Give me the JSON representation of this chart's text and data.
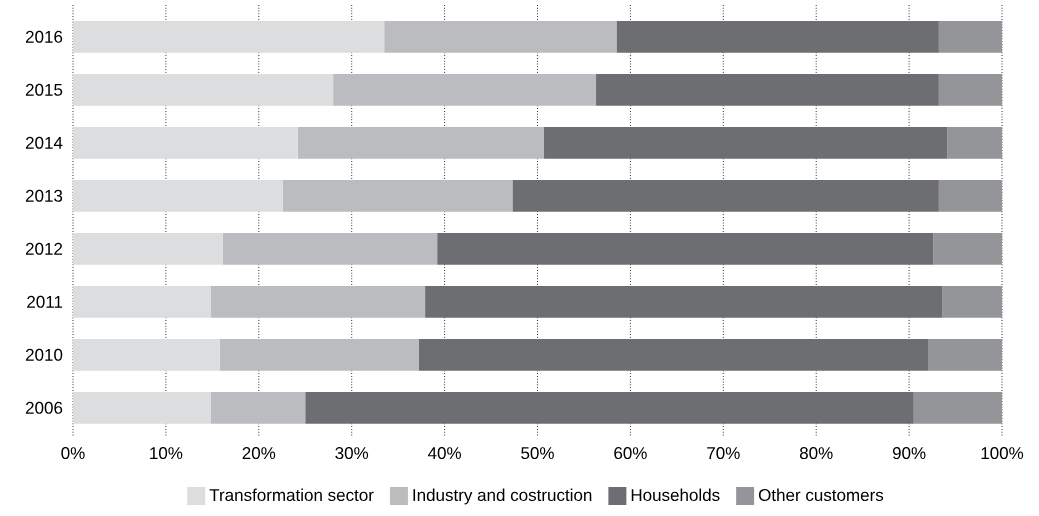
{
  "chart_data": {
    "type": "bar",
    "orientation": "horizontal",
    "stacked": true,
    "grid": "x",
    "legend": "bottom",
    "categories": [
      "2016",
      "2015",
      "2014",
      "2013",
      "2012",
      "2011",
      "2010",
      "2006"
    ],
    "xlim": [
      0,
      100
    ],
    "xticks": [
      {
        "value": 0,
        "label": "0%"
      },
      {
        "value": 10,
        "label": "10%"
      },
      {
        "value": 20,
        "label": "20%"
      },
      {
        "value": 30,
        "label": "30%"
      },
      {
        "value": 40,
        "label": "40%"
      },
      {
        "value": 50,
        "label": "50%"
      },
      {
        "value": 60,
        "label": "60%"
      },
      {
        "value": 70,
        "label": "70%"
      },
      {
        "value": 80,
        "label": "80%"
      },
      {
        "value": 90,
        "label": "90%"
      },
      {
        "value": 100,
        "label": "100%"
      }
    ],
    "series": [
      {
        "name": "Transformation sector",
        "color": "#dcdddf",
        "values": [
          33.5,
          28.0,
          24.2,
          22.6,
          16.1,
          14.8,
          15.8,
          14.8
        ]
      },
      {
        "name": "Industry and costruction",
        "color": "#bbbcc0",
        "values": [
          25.0,
          28.3,
          26.5,
          24.7,
          23.1,
          23.1,
          21.4,
          10.2
        ]
      },
      {
        "name": "Households",
        "color": "#6d6e72",
        "values": [
          34.7,
          36.9,
          43.4,
          45.9,
          53.4,
          55.7,
          54.9,
          65.5
        ]
      },
      {
        "name": "Other customers",
        "color": "#949598",
        "values": [
          6.8,
          6.8,
          5.9,
          6.8,
          7.4,
          6.4,
          7.9,
          9.5
        ]
      }
    ]
  }
}
